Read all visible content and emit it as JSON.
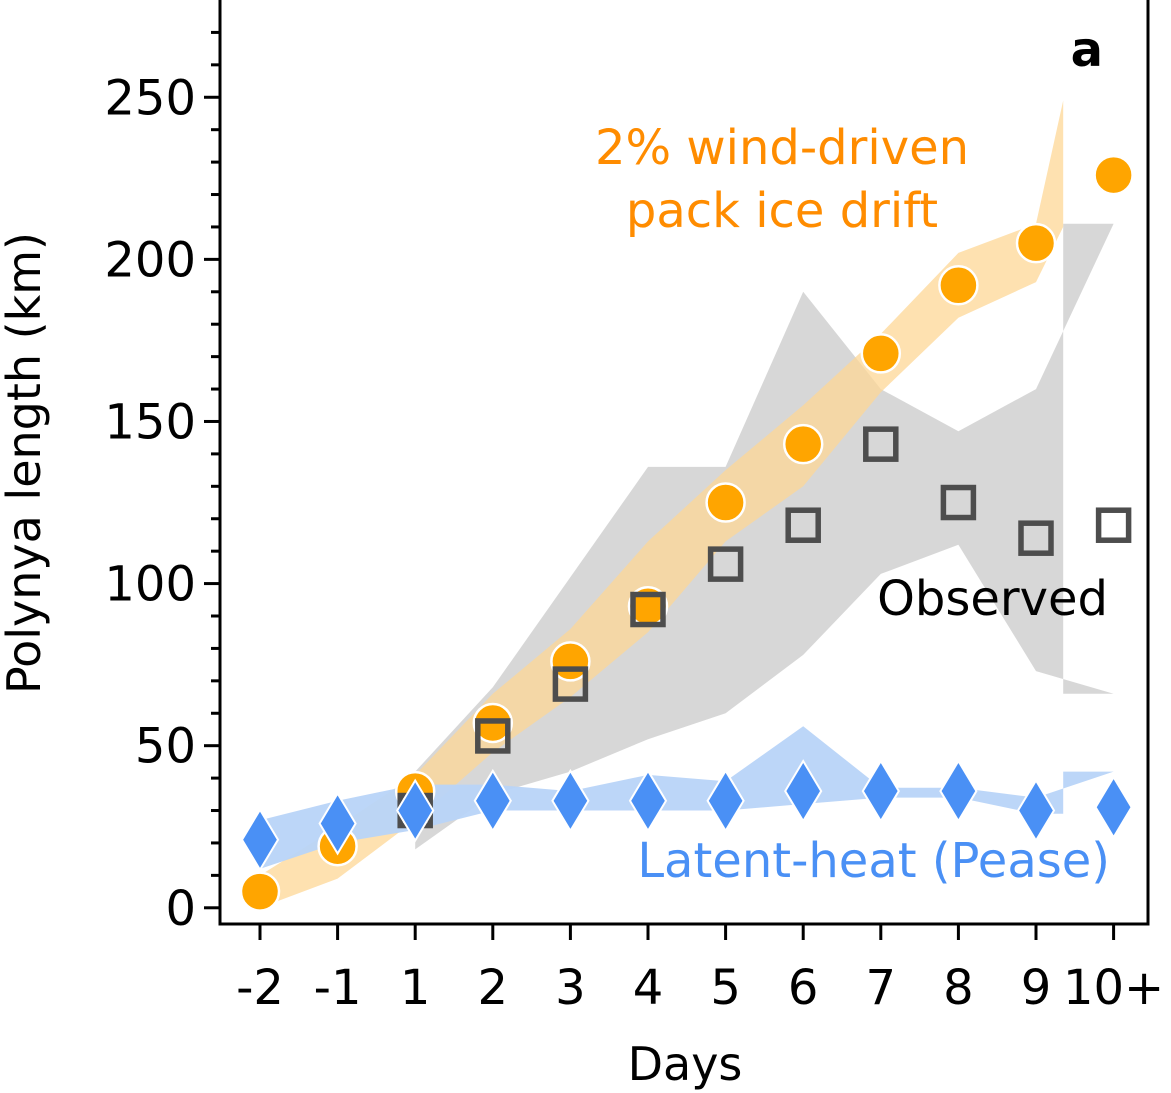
{
  "chart_data": {
    "type": "scatter",
    "panel_label": "a",
    "xlabel": "Days",
    "ylabel": "Polynya length (km)",
    "ylim": [
      -5,
      280
    ],
    "yticks": [
      0,
      50,
      100,
      150,
      200,
      250
    ],
    "ytick_labels": [
      "0",
      "50",
      "100",
      "150",
      "200",
      "250"
    ],
    "categories": [
      "-2",
      "-1",
      "1",
      "2",
      "3",
      "4",
      "5",
      "6",
      "7",
      "8",
      "9",
      "10+"
    ],
    "grid": false,
    "series": [
      {
        "key": "wind",
        "name": "2% wind-driven pack ice drift",
        "label_lines": [
          "2% wind-driven",
          "pack ice drift"
        ],
        "marker": "circle",
        "color": "#ffa500",
        "band_color": "#fdd795",
        "values": [
          5,
          19,
          36,
          57,
          76,
          93,
          125,
          143,
          171,
          192,
          205,
          226
        ],
        "band_low": [
          0,
          9,
          27,
          48,
          65,
          85,
          113,
          130,
          159,
          182,
          193,
          210
        ],
        "band_high": [
          10,
          25,
          41,
          66,
          86,
          113,
          135,
          155,
          177,
          202,
          211,
          249
        ],
        "band_x": [
          0,
          1,
          2,
          3,
          4,
          5,
          6,
          7,
          8,
          9,
          10,
          10.35
        ],
        "band_low_ext": [
          0,
          9,
          27,
          48,
          65,
          85,
          113,
          130,
          159,
          182,
          193,
          210,
          210
        ],
        "band_high_ext": [
          10,
          25,
          41,
          66,
          86,
          113,
          135,
          155,
          177,
          202,
          211,
          249,
          249
        ]
      },
      {
        "key": "observed",
        "name": "Observed",
        "marker": "square",
        "color": "#4d4d4d",
        "band_color": "#d3d3d3",
        "values": [
          null,
          null,
          30,
          53,
          69,
          92,
          106,
          118,
          143,
          125,
          114,
          118
        ],
        "band_low": [
          null,
          null,
          18,
          35,
          42,
          52,
          60,
          78,
          103,
          112,
          73,
          66
        ],
        "band_high": [
          null,
          null,
          42,
          68,
          102,
          136,
          136,
          190,
          160,
          147,
          160,
          211
        ]
      },
      {
        "key": "pease",
        "name": "Latent-heat (Pease)",
        "marker": "diamond",
        "color": "#4a90f5",
        "band_color": "#b8d4f8",
        "values": [
          21,
          26,
          30,
          33,
          33,
          33,
          33,
          36,
          36,
          36,
          30,
          31
        ],
        "band_low": [
          12,
          20,
          24,
          30,
          30,
          30,
          30,
          32,
          34,
          34,
          29,
          29
        ],
        "band_high": [
          27,
          33,
          38,
          38,
          36,
          41,
          39,
          56,
          37,
          37,
          34,
          42
        ]
      }
    ],
    "annotations": {
      "observed_label": "Observed",
      "pease_label": "Latent-heat (Pease)"
    }
  }
}
